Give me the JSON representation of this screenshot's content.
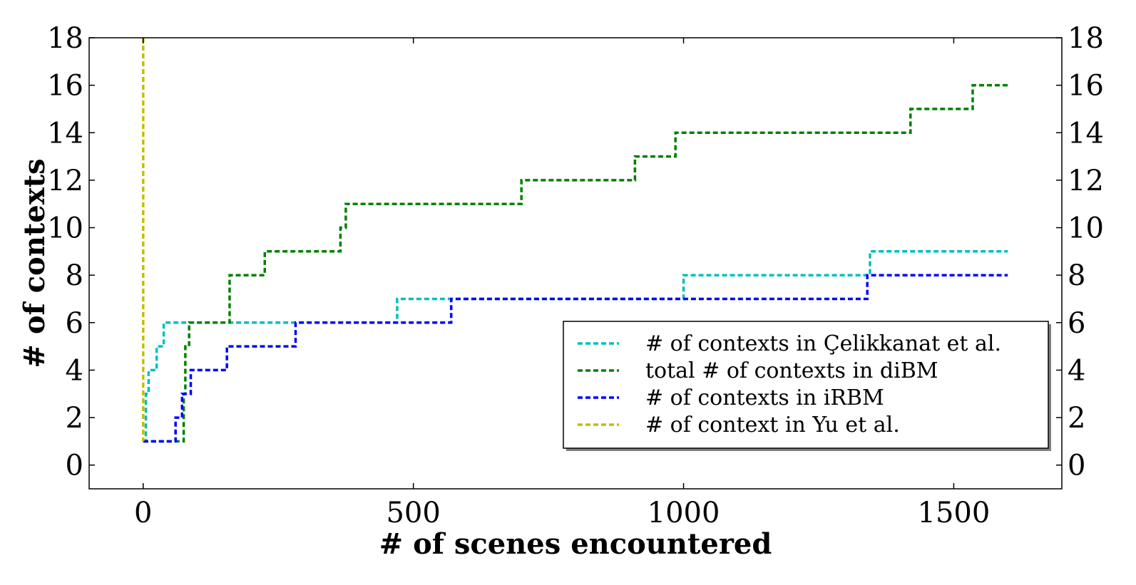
{
  "chart_data": {
    "type": "line",
    "title": "",
    "xlabel": "# of scenes encountered",
    "ylabel": "# of contexts",
    "xlim": [
      -100,
      1700
    ],
    "ylim": [
      -1,
      18
    ],
    "xticks": [
      0,
      500,
      1000,
      1500
    ],
    "xtick_labels": [
      "0",
      "500",
      "1000",
      "1500"
    ],
    "yticks": [
      0,
      2,
      4,
      6,
      8,
      10,
      12,
      14,
      16,
      18
    ],
    "ytick_labels": [
      "0",
      "2",
      "4",
      "6",
      "8",
      "10",
      "12",
      "14",
      "16",
      "18"
    ],
    "right_axis_mirror": true,
    "grid": false,
    "legend_position": "lower-right",
    "series": [
      {
        "name": "# of contexts in Çelikkanat et al.",
        "color": "#00bfbf",
        "style": "dashed-step",
        "points": [
          [
            0,
            1
          ],
          [
            5,
            1
          ],
          [
            5,
            3
          ],
          [
            10,
            3
          ],
          [
            10,
            4
          ],
          [
            25,
            4
          ],
          [
            25,
            5
          ],
          [
            38,
            5
          ],
          [
            38,
            6
          ],
          [
            470,
            6
          ],
          [
            470,
            7
          ],
          [
            1000,
            7
          ],
          [
            1000,
            8
          ],
          [
            1345,
            8
          ],
          [
            1345,
            9
          ],
          [
            1600,
            9
          ]
        ]
      },
      {
        "name": "total # of contexts in diBM",
        "color": "#008000",
        "style": "dashed-step",
        "points": [
          [
            0,
            1
          ],
          [
            75,
            1
          ],
          [
            75,
            3
          ],
          [
            78,
            3
          ],
          [
            78,
            5
          ],
          [
            85,
            5
          ],
          [
            85,
            6
          ],
          [
            160,
            6
          ],
          [
            160,
            8
          ],
          [
            225,
            8
          ],
          [
            225,
            9
          ],
          [
            365,
            9
          ],
          [
            365,
            10
          ],
          [
            375,
            10
          ],
          [
            375,
            11
          ],
          [
            700,
            11
          ],
          [
            700,
            12
          ],
          [
            910,
            12
          ],
          [
            910,
            13
          ],
          [
            985,
            13
          ],
          [
            985,
            14
          ],
          [
            1420,
            14
          ],
          [
            1420,
            15
          ],
          [
            1535,
            15
          ],
          [
            1535,
            16
          ],
          [
            1600,
            16
          ]
        ]
      },
      {
        "name": "# of contexts in iRBM",
        "color": "#0000ff",
        "style": "dashed-step",
        "points": [
          [
            0,
            1
          ],
          [
            60,
            1
          ],
          [
            60,
            2
          ],
          [
            72,
            2
          ],
          [
            72,
            3
          ],
          [
            88,
            3
          ],
          [
            88,
            4
          ],
          [
            155,
            4
          ],
          [
            155,
            5
          ],
          [
            282,
            5
          ],
          [
            282,
            6
          ],
          [
            570,
            6
          ],
          [
            570,
            7
          ],
          [
            1340,
            7
          ],
          [
            1340,
            8
          ],
          [
            1600,
            8
          ]
        ]
      },
      {
        "name": "# of context in Yu et al.",
        "color": "#bfbf00",
        "style": "dashed",
        "points": [
          [
            0,
            18
          ],
          [
            0,
            1
          ]
        ]
      }
    ]
  }
}
